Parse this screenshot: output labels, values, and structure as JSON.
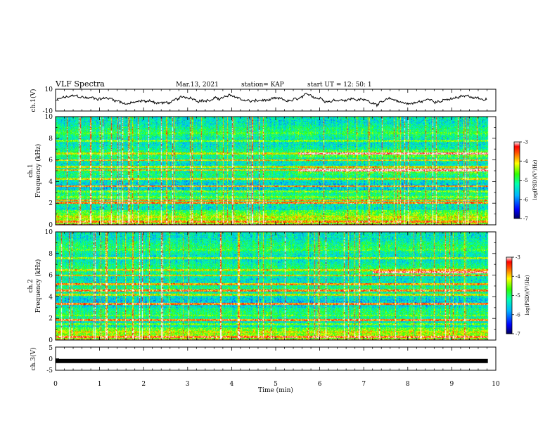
{
  "header": {
    "title": "VLF Spectra",
    "date": "Mar.13, 2021",
    "station": "station= KAP",
    "start": "start  UT =   12: 50: 1"
  },
  "chart_data": [
    {
      "type": "line",
      "name": "ch1-waveform",
      "ylabel": "ch.1(V)",
      "ylim": [
        -10,
        10
      ],
      "yticks": [
        "10",
        "-10"
      ]
    },
    {
      "type": "heatmap",
      "name": "ch1-spectrogram",
      "ylabel_line1": "ch.1",
      "ylabel_line2": "Frequency  (kHz)",
      "ylim": [
        0,
        10
      ],
      "yticks": [
        "0",
        "2",
        "4",
        "6",
        "8",
        "10"
      ],
      "xlim": [
        0,
        10
      ],
      "color_range": [
        -7,
        -3
      ],
      "colorbar_ticks": [
        "-3",
        "-4",
        "-5",
        "-6",
        "-7"
      ],
      "colorbar_label": "log(PSD)(V²/Hz)",
      "bands": [
        {
          "f": 0.3,
          "level": 0.85
        },
        {
          "f": 0.8,
          "level": 0.7
        },
        {
          "f": 1.3,
          "level": 0.55
        },
        {
          "f": 2.1,
          "level": 0.85
        },
        {
          "f": 2.3,
          "level": 0.8
        },
        {
          "f": 2.6,
          "level": 0.6
        },
        {
          "f": 3.1,
          "level": 0.6
        },
        {
          "f": 3.6,
          "level": 0.8
        },
        {
          "f": 4.3,
          "level": 0.7
        },
        {
          "f": 5.1,
          "level": 0.75
        },
        {
          "f": 5.4,
          "level": 0.7
        },
        {
          "f": 6.0,
          "level": 0.75
        },
        {
          "f": 6.6,
          "level": 0.7
        },
        {
          "f": 7.8,
          "level": 0.6
        },
        {
          "f": 8.5,
          "level": 0.55
        }
      ],
      "late_bands": [
        {
          "f": 5.1,
          "level": 0.95,
          "start": 5.5
        },
        {
          "f": 6.6,
          "level": 0.95,
          "start": 5.5
        }
      ]
    },
    {
      "type": "heatmap",
      "name": "ch2-spectrogram",
      "ylabel_line1": "ch.2",
      "ylabel_line2": "Frequency  (kHz)",
      "ylim": [
        0,
        10
      ],
      "yticks": [
        "0",
        "2",
        "4",
        "6",
        "8",
        "10"
      ],
      "xlim": [
        0,
        10
      ],
      "color_range": [
        -7,
        -3
      ],
      "colorbar_ticks": [
        "-3",
        "-4",
        "-5",
        "-6",
        "-7"
      ],
      "colorbar_label": "log(PSD)(V²/Hz)",
      "bands": [
        {
          "f": 0.3,
          "level": 0.9
        },
        {
          "f": 0.8,
          "level": 0.7
        },
        {
          "f": 1.5,
          "level": 0.6
        },
        {
          "f": 1.9,
          "level": 0.85
        },
        {
          "f": 2.3,
          "level": 0.6
        },
        {
          "f": 3.4,
          "level": 0.85
        },
        {
          "f": 4.2,
          "level": 0.7
        },
        {
          "f": 4.6,
          "level": 0.85
        },
        {
          "f": 5.2,
          "level": 0.8
        },
        {
          "f": 6.0,
          "level": 0.75
        },
        {
          "f": 6.5,
          "level": 0.7
        },
        {
          "f": 7.6,
          "level": 0.65
        },
        {
          "f": 8.4,
          "level": 0.55
        }
      ],
      "late_bands": [
        {
          "f": 6.3,
          "level": 0.95,
          "start": 7.2
        }
      ]
    },
    {
      "type": "line",
      "name": "ch3-waveform",
      "ylabel": "ch.3(V)",
      "ylim": [
        -5,
        5
      ],
      "yticks": [
        "5",
        "0",
        "-5"
      ],
      "level": -1.0,
      "xlim": [
        0,
        10
      ],
      "xticks": [
        "0",
        "1",
        "2",
        "3",
        "4",
        "5",
        "6",
        "7",
        "8",
        "9",
        "10"
      ],
      "xlabel": "Time  (min)"
    }
  ]
}
